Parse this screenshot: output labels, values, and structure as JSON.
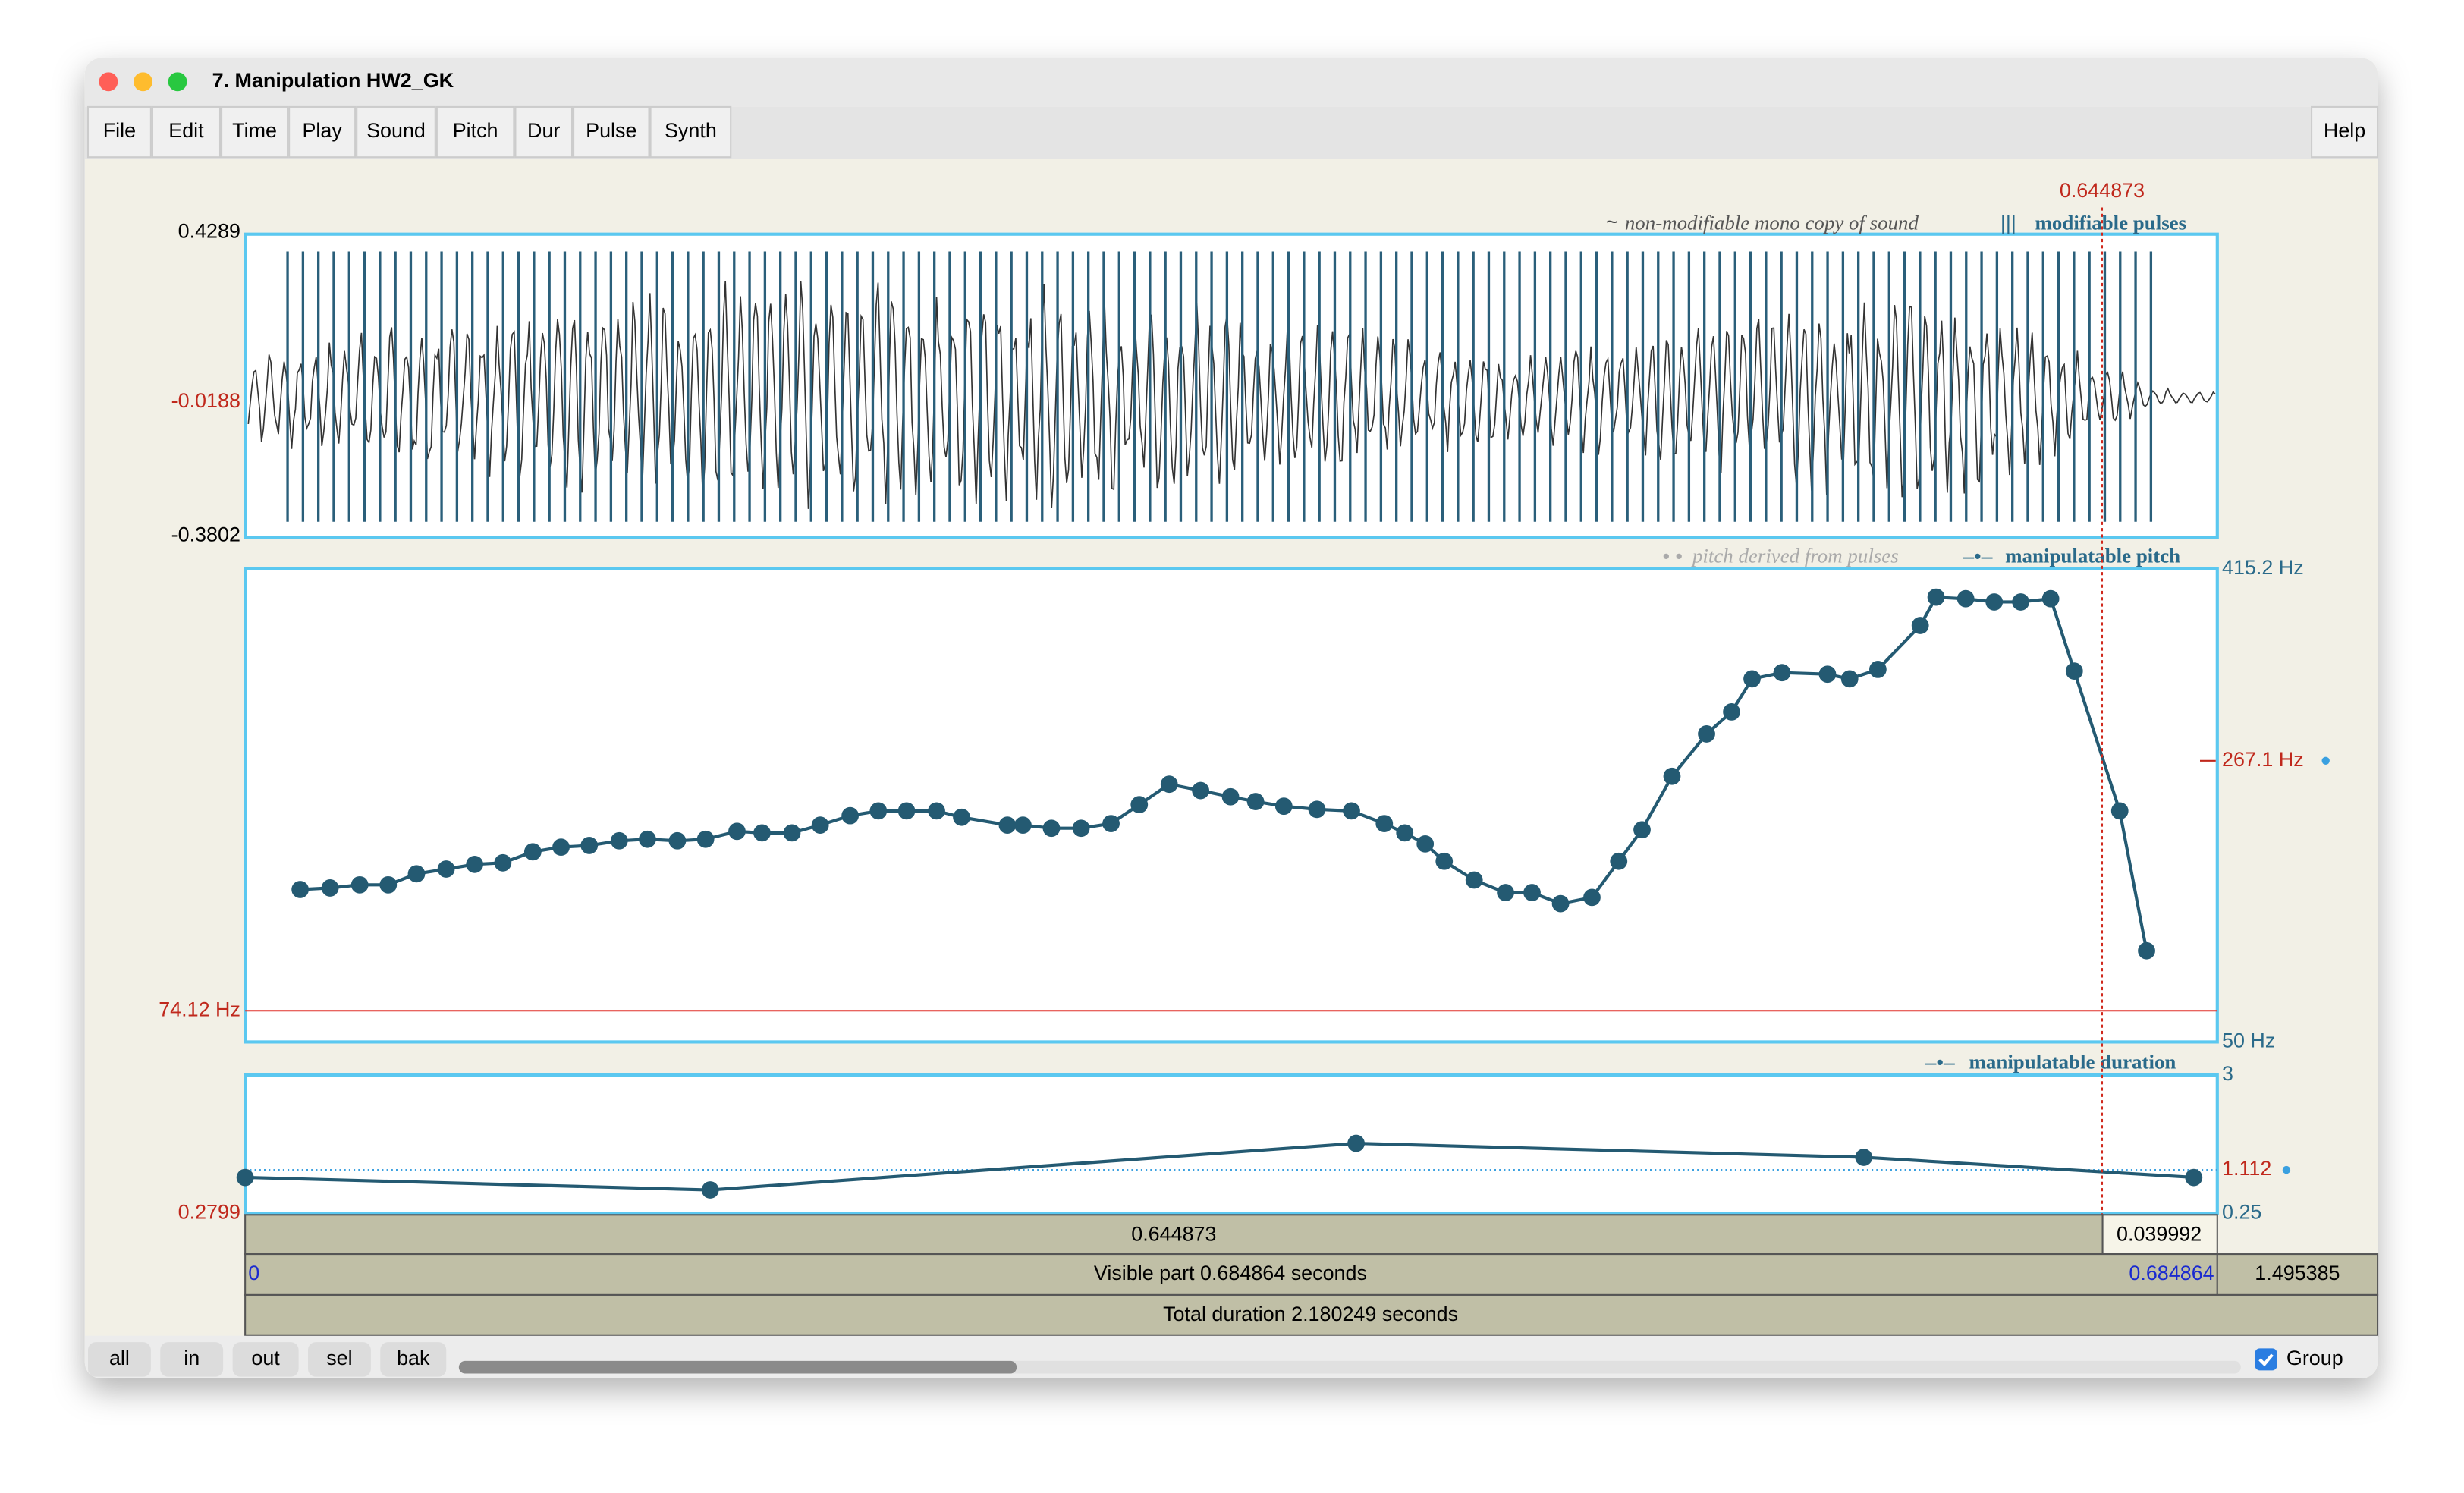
{
  "window": {
    "title": "7. Manipulation HW2_GK"
  },
  "menu": [
    "File",
    "Edit",
    "Time",
    "Play",
    "Sound",
    "Pitch",
    "Dur",
    "Pulse",
    "Synth"
  ],
  "help": "Help",
  "cursor": {
    "value": 0.644873,
    "label": "0.644873"
  },
  "time_axis": {
    "start": {
      "value": 0,
      "label": "0"
    },
    "end": {
      "value": 0.684864,
      "label": "0.684864"
    }
  },
  "sound": {
    "legend_sound": "non-modifiable mono copy of sound",
    "legend_pulses": "modifiable pulses",
    "top": {
      "value": 0.4289,
      "label": "0.4289"
    },
    "cursor_value": {
      "value": -0.0188,
      "label": "-0.0188"
    },
    "bottom": {
      "value": -0.3802,
      "label": "-0.3802"
    }
  },
  "pitch": {
    "legend_derived": "pitch derived from pulses",
    "legend_manip": "manipulatable pitch",
    "top": {
      "value": 415.2,
      "label": "415.2 Hz"
    },
    "cursor_value": {
      "value": 267.1,
      "label": "267.1 Hz"
    },
    "bottom": {
      "value": 50,
      "label": "50 Hz"
    },
    "floor": {
      "value": 74.12,
      "label": "74.12 Hz"
    },
    "times": [
      0.0191,
      0.0295,
      0.0398,
      0.0497,
      0.0595,
      0.0698,
      0.0797,
      0.0895,
      0.0999,
      0.1097,
      0.1195,
      0.1299,
      0.1397,
      0.1501,
      0.1599,
      0.1708,
      0.1795,
      0.1899,
      0.1997,
      0.2101,
      0.2199,
      0.2297,
      0.2401,
      0.2488,
      0.2647,
      0.2701,
      0.28,
      0.2903,
      0.3007,
      0.3105,
      0.3209,
      0.3318,
      0.3422,
      0.3509,
      0.3607,
      0.3722,
      0.3842,
      0.3956,
      0.4027,
      0.4098,
      0.4164,
      0.4268,
      0.4377,
      0.4469,
      0.4568,
      0.4677,
      0.477,
      0.4851,
      0.4955,
      0.5075,
      0.5162,
      0.5233,
      0.5337,
      0.5495,
      0.5572,
      0.567,
      0.5817,
      0.5872,
      0.5975,
      0.6074,
      0.6166,
      0.627,
      0.6352,
      0.651,
      0.6603
    ],
    "hz": [
      167.7,
      168.9,
      171.3,
      171.3,
      179.8,
      183.5,
      187.1,
      188.3,
      196.8,
      200.4,
      201.7,
      205.3,
      206.5,
      205.3,
      206.5,
      212.6,
      211.4,
      211.4,
      217.4,
      224.7,
      228.4,
      228.4,
      228.4,
      223.5,
      217.4,
      217.4,
      215.0,
      215.0,
      218.6,
      233.2,
      249.0,
      244.1,
      239.3,
      235.6,
      232.0,
      229.6,
      228.4,
      218.6,
      211.4,
      202.9,
      189.5,
      175.0,
      165.3,
      165.3,
      156.8,
      161.6,
      189.5,
      213.8,
      255.1,
      287.8,
      304.8,
      330.3,
      335.1,
      333.9,
      330.3,
      337.6,
      371.5,
      393.4,
      392.2,
      389.7,
      389.7,
      392.2,
      336.3,
      228.4,
      120.4
    ]
  },
  "duration": {
    "legend": "manipulatable duration",
    "top": {
      "value": 3,
      "label": "3"
    },
    "cursor_value": {
      "value": 1.112,
      "label": "1.112"
    },
    "bottom": {
      "value": 0.25,
      "label": "0.25"
    },
    "left_value": "0.2799",
    "times": [
      0,
      0.1615,
      0.3858,
      0.5621,
      0.6767
    ],
    "values": [
      0.961,
      0.713,
      1.64,
      1.362,
      0.961
    ]
  },
  "bars": {
    "cursor_left": "0.644873",
    "cursor_right": "0.039992",
    "visible": "Visible part 0.684864 seconds",
    "after": "1.495385",
    "total": "Total duration 2.180249 seconds"
  },
  "buttons": [
    "all",
    "in",
    "out",
    "sel",
    "bak"
  ],
  "group": "Group"
}
